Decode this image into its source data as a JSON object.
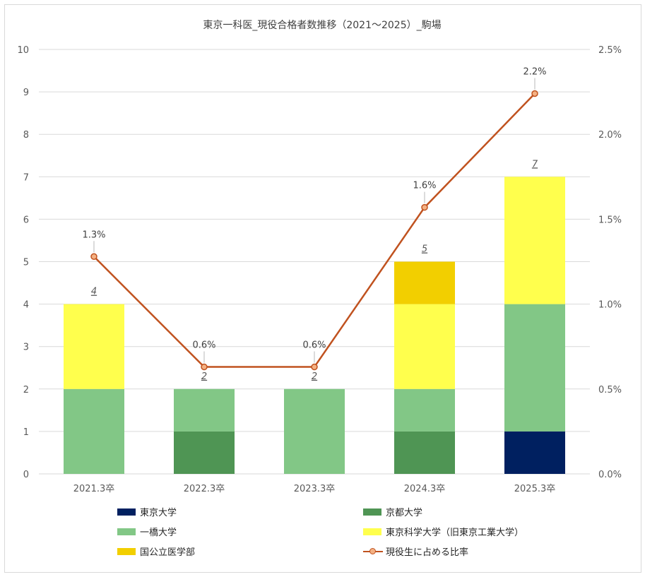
{
  "chart_data": {
    "type": "bar",
    "title": "東京一科医_現役合格者数推移（2021～2025）_駒場",
    "categories": [
      "2021.3卒",
      "2022.3卒",
      "2023.3卒",
      "2024.3卒",
      "2025.3卒"
    ],
    "series": [
      {
        "name": "東京大学",
        "values": [
          0,
          0,
          0,
          0,
          1
        ],
        "color": "#002060"
      },
      {
        "name": "京都大学",
        "values": [
          0,
          1,
          0,
          1,
          0
        ],
        "color": "#4f9554"
      },
      {
        "name": "一橋大学",
        "values": [
          2,
          1,
          2,
          1,
          3
        ],
        "color": "#82c786"
      },
      {
        "name": "東京科学大学（旧東京工業大学）",
        "values": [
          2,
          0,
          0,
          2,
          3
        ],
        "color": "#ffff4d"
      },
      {
        "name": "国公立医学部",
        "values": [
          0,
          0,
          0,
          1,
          0
        ],
        "color": "#f2cf00"
      }
    ],
    "totals": [
      "4",
      "2",
      "2",
      "5",
      "7"
    ],
    "line_series": {
      "name": "現役生に占める比率",
      "values": [
        1.28,
        0.63,
        0.63,
        1.57,
        2.24
      ],
      "labels": [
        "1.3%",
        "0.6%",
        "0.6%",
        "1.6%",
        "2.2%"
      ],
      "color": "#c0521f"
    },
    "ylim": [
      0,
      10
    ],
    "y_ticks": [
      "0",
      "1",
      "2",
      "3",
      "4",
      "5",
      "6",
      "7",
      "8",
      "9",
      "10"
    ],
    "y2lim": [
      0,
      2.5
    ],
    "y2_ticks": [
      "0.0%",
      "0.5%",
      "1.0%",
      "1.5%",
      "2.0%",
      "2.5%"
    ],
    "grid": true,
    "legend_position": "bottom"
  }
}
